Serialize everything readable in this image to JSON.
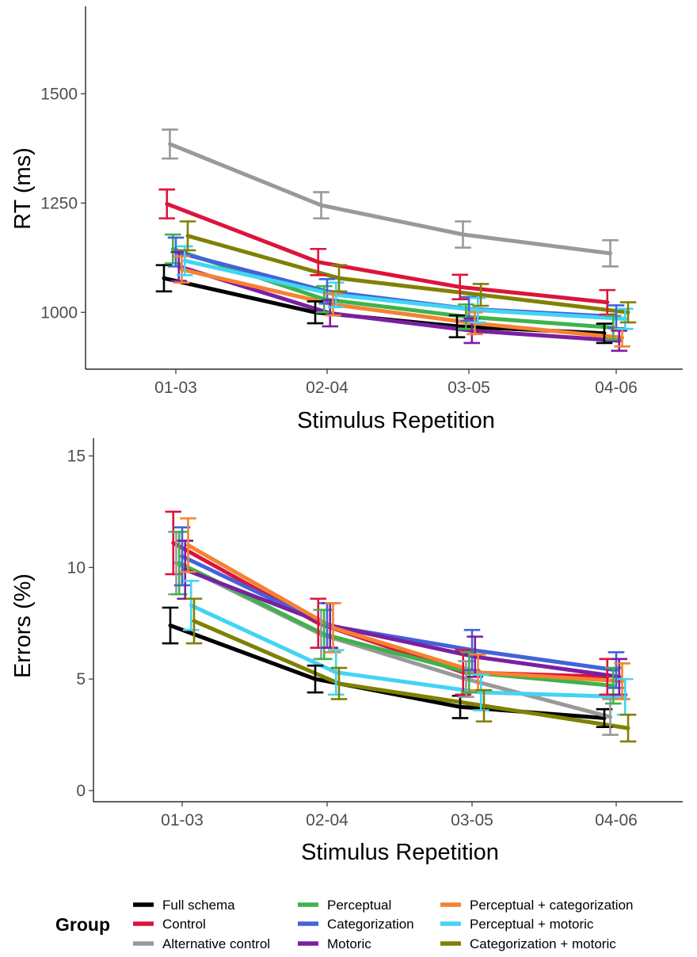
{
  "legend": {
    "title": "Group"
  },
  "groups": [
    {
      "name": "Full schema",
      "color": "#000000"
    },
    {
      "name": "Control",
      "color": "#DC143C"
    },
    {
      "name": "Alternative control",
      "color": "#999999"
    },
    {
      "name": "Perceptual",
      "color": "#3CB44B"
    },
    {
      "name": "Categorization",
      "color": "#4363D8"
    },
    {
      "name": "Motoric",
      "color": "#7B1FA2"
    },
    {
      "name": "Perceptual + categorization",
      "color": "#F58231"
    },
    {
      "name": "Perceptual + motoric",
      "color": "#42D4F4"
    },
    {
      "name": "Categorization + motoric",
      "color": "#808000"
    }
  ],
  "chart_data": [
    {
      "type": "line",
      "title": "",
      "xlabel": "Stimulus Repetition",
      "ylabel": "RT (ms)",
      "categories": [
        "01-03",
        "02-04",
        "03-05",
        "04-06"
      ],
      "ylim": [
        870,
        1700
      ],
      "yticks": [
        "1000",
        "1250",
        "1500"
      ],
      "grid": false,
      "legend_position": "bottom",
      "series": [
        {
          "name": "Full schema",
          "values": [
            1078,
            1000,
            968,
            952
          ],
          "errors": [
            30,
            25,
            25,
            22
          ]
        },
        {
          "name": "Control",
          "values": [
            1248,
            1115,
            1058,
            1023
          ],
          "errors": [
            33,
            30,
            28,
            28
          ]
        },
        {
          "name": "Alternative control",
          "values": [
            1385,
            1245,
            1178,
            1135
          ],
          "errors": [
            33,
            30,
            30,
            30
          ]
        },
        {
          "name": "Perceptual",
          "values": [
            1145,
            1030,
            990,
            965
          ],
          "errors": [
            33,
            30,
            28,
            27
          ]
        },
        {
          "name": "Categorization",
          "values": [
            1138,
            1048,
            1008,
            990
          ],
          "errors": [
            33,
            28,
            27,
            26
          ]
        },
        {
          "name": "Motoric",
          "values": [
            1105,
            998,
            958,
            935
          ],
          "errors": [
            33,
            30,
            28,
            23
          ]
        },
        {
          "name": "Perceptual + categorization",
          "values": [
            1098,
            1018,
            975,
            942
          ],
          "errors": [
            30,
            25,
            25,
            20
          ]
        },
        {
          "name": "Perceptual + motoric",
          "values": [
            1118,
            1040,
            1005,
            985
          ],
          "errors": [
            33,
            28,
            28,
            23
          ]
        },
        {
          "name": "Categorization + motoric",
          "values": [
            1175,
            1078,
            1040,
            1000
          ],
          "errors": [
            33,
            30,
            25,
            23
          ]
        }
      ]
    },
    {
      "type": "line",
      "title": "",
      "xlabel": "Stimulus Repetition",
      "ylabel": "Errors (%)",
      "categories": [
        "01-03",
        "02-04",
        "03-05",
        "04-06"
      ],
      "ylim": [
        -0.5,
        15.8
      ],
      "yticks": [
        "0",
        "5",
        "10",
        "15"
      ],
      "grid": false,
      "legend_position": "bottom",
      "series": [
        {
          "name": "Full schema",
          "values": [
            7.4,
            5.0,
            3.75,
            3.25
          ],
          "errors": [
            0.8,
            0.6,
            0.5,
            0.4
          ]
        },
        {
          "name": "Control",
          "values": [
            11.1,
            7.5,
            5.3,
            5.1
          ],
          "errors": [
            1.4,
            1.1,
            1.0,
            0.8
          ]
        },
        {
          "name": "Alternative control",
          "values": [
            10.2,
            7.0,
            5.0,
            3.3
          ],
          "errors": [
            1.4,
            1.1,
            0.8,
            0.8
          ]
        },
        {
          "name": "Perceptual",
          "values": [
            10.2,
            7.0,
            5.3,
            4.7
          ],
          "errors": [
            1.4,
            1.1,
            0.9,
            0.8
          ]
        },
        {
          "name": "Categorization",
          "values": [
            10.5,
            7.4,
            6.3,
            5.4
          ],
          "errors": [
            1.3,
            1.0,
            0.9,
            0.8
          ]
        },
        {
          "name": "Motoric",
          "values": [
            9.9,
            7.4,
            6.0,
            5.1
          ],
          "errors": [
            1.3,
            1.0,
            0.9,
            0.8
          ]
        },
        {
          "name": "Perceptual + categorization",
          "values": [
            11.0,
            7.3,
            5.3,
            4.9
          ],
          "errors": [
            1.2,
            1.1,
            0.8,
            0.8
          ]
        },
        {
          "name": "Perceptual + motoric",
          "values": [
            8.3,
            5.3,
            4.4,
            4.2
          ],
          "errors": [
            1.1,
            1.0,
            0.8,
            0.8
          ]
        },
        {
          "name": "Categorization + motoric",
          "values": [
            7.6,
            4.8,
            3.8,
            2.8
          ],
          "errors": [
            1.0,
            0.7,
            0.7,
            0.6
          ]
        }
      ]
    }
  ]
}
